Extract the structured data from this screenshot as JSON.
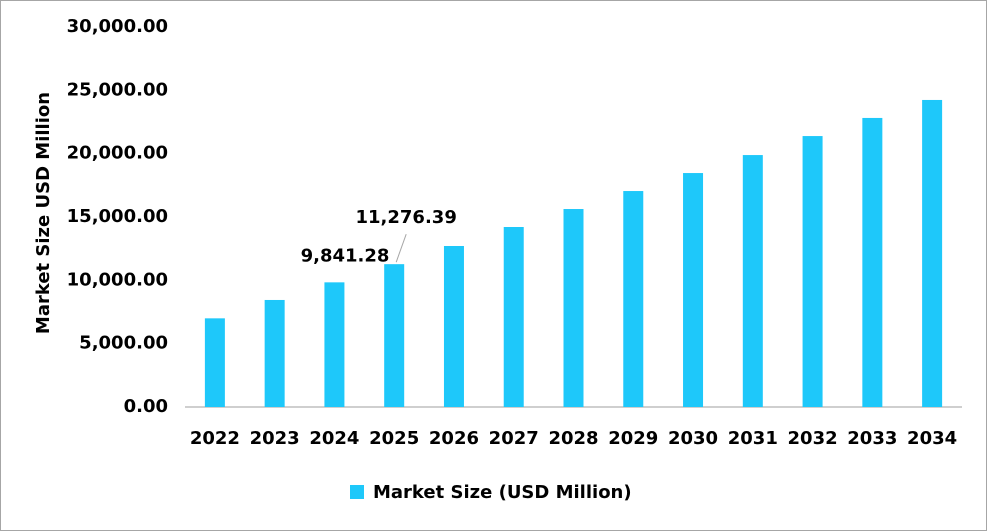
{
  "chart_data": {
    "type": "bar",
    "y_label": "Market Size USD Million",
    "categories": [
      "2022",
      "2023",
      "2024",
      "2025",
      "2026",
      "2027",
      "2028",
      "2029",
      "2030",
      "2031",
      "2032",
      "2033",
      "2034"
    ],
    "series": [
      {
        "name": "Market Size (USD Million)",
        "color": "#1ec8fa",
        "values": [
          7000,
          8450,
          9841.28,
          11276.39,
          12710,
          14210,
          15630,
          17050,
          18470,
          19890,
          21390,
          22820,
          24240
        ],
        "value_labels": [
          null,
          null,
          "9,841.28",
          "11,276.39",
          null,
          null,
          null,
          null,
          null,
          null,
          null,
          null,
          null
        ]
      }
    ],
    "ylim": [
      0,
      30000
    ],
    "yticks": [
      {
        "value": 0,
        "label": "0.00"
      },
      {
        "value": 5000,
        "label": "5,000.00"
      },
      {
        "value": 10000,
        "label": "10,000.00"
      },
      {
        "value": 15000,
        "label": "15,000.00"
      },
      {
        "value": 20000,
        "label": "20,000.00"
      },
      {
        "value": 25000,
        "label": "25,000.00"
      },
      {
        "value": 30000,
        "label": "30,000.00"
      }
    ],
    "grid": false,
    "legend": "bottom"
  }
}
